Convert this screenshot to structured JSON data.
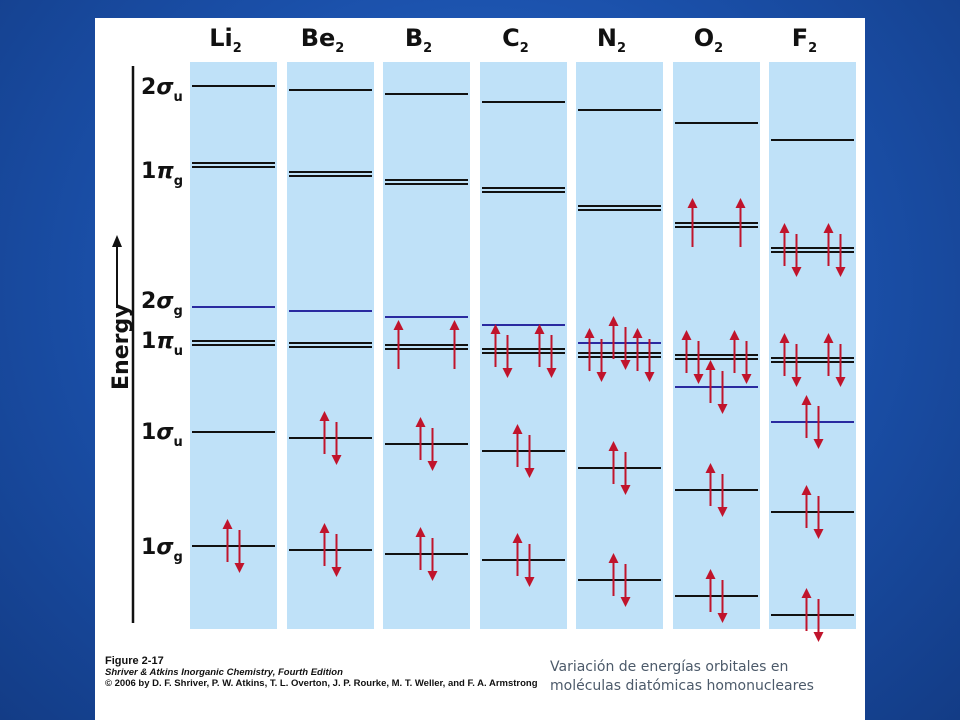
{
  "molecules": [
    {
      "label": "Li",
      "sub": "2"
    },
    {
      "label": "Be",
      "sub": "2"
    },
    {
      "label": "B",
      "sub": "2"
    },
    {
      "label": "C",
      "sub": "2"
    },
    {
      "label": "N",
      "sub": "2"
    },
    {
      "label": "O",
      "sub": "2"
    },
    {
      "label": "F",
      "sub": "2"
    }
  ],
  "axis": {
    "label": "Energy"
  },
  "orbital_labels": [
    {
      "num": "2",
      "greek": "σ",
      "sub": "u"
    },
    {
      "num": "1",
      "greek": "π",
      "sub": "g"
    },
    {
      "num": "2",
      "greek": "σ",
      "sub": "g"
    },
    {
      "num": "1",
      "greek": "π",
      "sub": "u"
    },
    {
      "num": "1",
      "greek": "σ",
      "sub": "u"
    },
    {
      "num": "1",
      "greek": "σ",
      "sub": "g"
    }
  ],
  "caption": {
    "figure": "Figure 2-17",
    "source": "Shriver & Atkins Inorganic Chemistry, Fourth Edition",
    "copyright": "© 2006 by D. F. Shriver, P. W. Atkins, T. L. Overton, J. P. Rourke, M. T. Weller, and F. A. Armstrong"
  },
  "note": {
    "line1": "Variación de energías orbitales en",
    "line2": "moléculas diatómicas homonucleares"
  },
  "colors": {
    "column_fill": "#bfe1f8",
    "level_black": "#111111",
    "level_sigma2g": "#2a2aa0",
    "arrow_red": "#c0142c",
    "axis_line": "#111111"
  }
}
